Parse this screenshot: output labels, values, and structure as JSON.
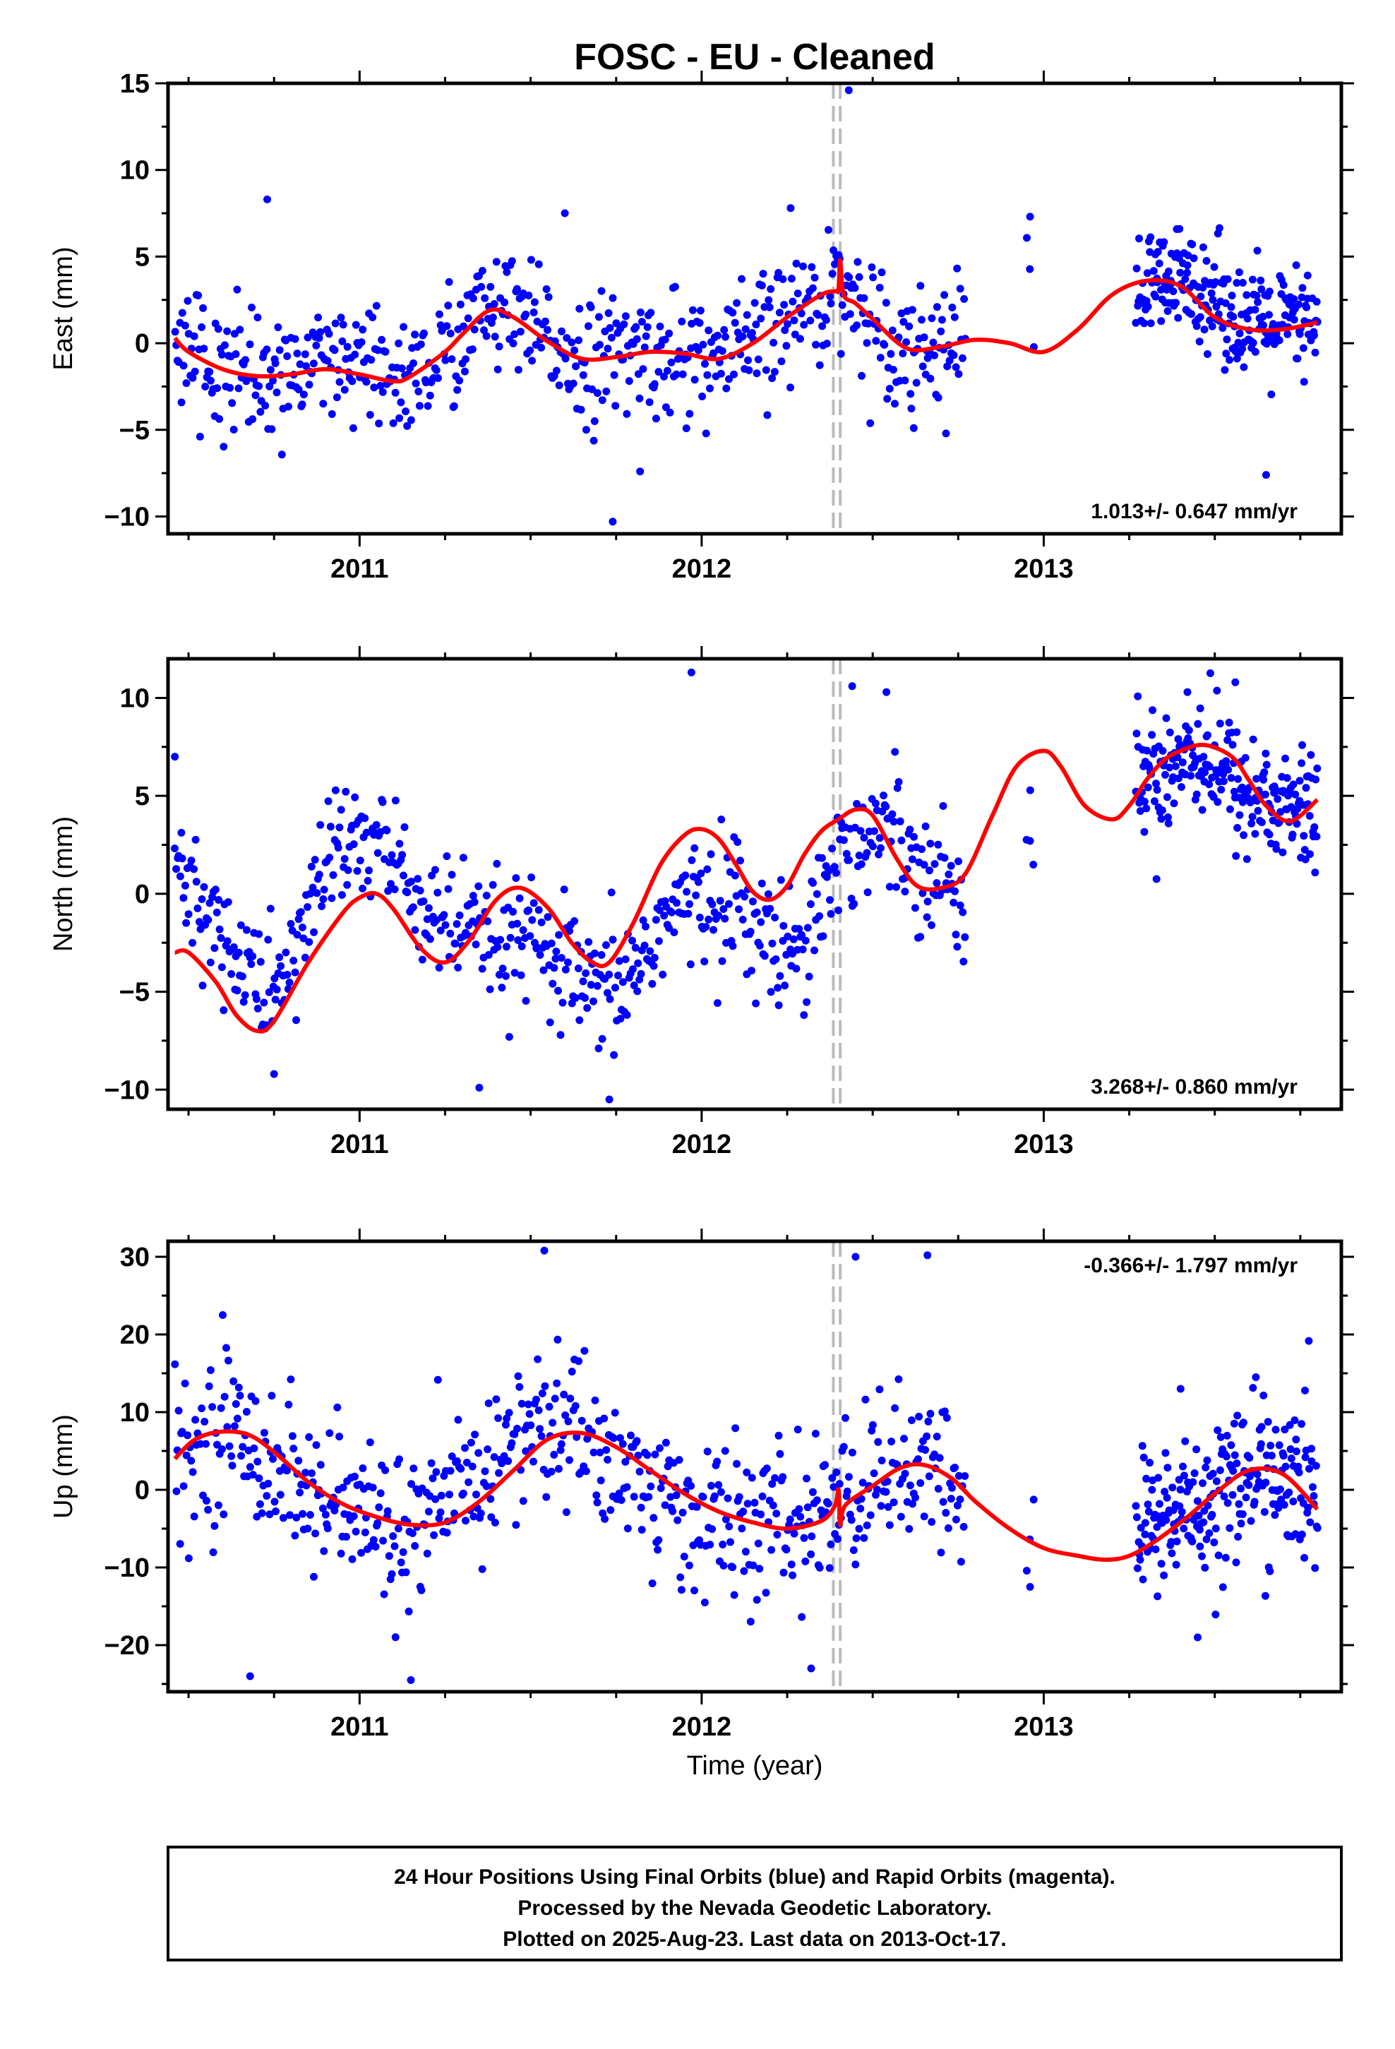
{
  "title": "FOSC  - EU - Cleaned",
  "xlabel": "Time (year)",
  "footer": [
    "24 Hour Positions Using Final Orbits (blue) and Rapid Orbits (magenta).",
    "Processed by the Nevada Geodetic Laboratory.",
    "Plotted on 2025-Aug-23. Last data on 2013-Oct-17."
  ],
  "colors": {
    "points": "#0000ff",
    "model": "#ff0000",
    "offset_line": "#bbbbbb"
  },
  "chart_data": [
    {
      "type": "scatter",
      "component": "East",
      "ylabel": "East (mm)",
      "xlim": [
        2010.44,
        2013.87
      ],
      "ylim": [
        -11,
        15
      ],
      "yticks": [
        -10,
        -5,
        0,
        5,
        10,
        15
      ],
      "xticks": [
        2011,
        2012,
        2013
      ],
      "grid": false,
      "rate": "1.013+/- 0.647 mm/yr",
      "rate_position": "bottom-right",
      "offset_epochs": [
        2012.385,
        2012.405
      ],
      "series": [
        {
          "style": "points",
          "x_range": [
            2010.46,
            2012.77
          ],
          "trend_knots": [
            [
              2010.46,
              0.2
            ],
            [
              2010.6,
              -1.2
            ],
            [
              2010.75,
              -1.9
            ],
            [
              2011.0,
              -1.6
            ],
            [
              2011.1,
              -2.1
            ],
            [
              2011.2,
              -1.5
            ],
            [
              2011.38,
              2.0
            ],
            [
              2011.55,
              0.2
            ],
            [
              2011.65,
              -1.0
            ],
            [
              2011.85,
              -0.5
            ],
            [
              2012.05,
              -1.0
            ],
            [
              2012.15,
              0.0
            ],
            [
              2012.3,
              2.0
            ],
            [
              2012.39,
              3.0
            ],
            [
              2012.405,
              4.6
            ],
            [
              2012.45,
              2.0
            ],
            [
              2012.6,
              -0.2
            ],
            [
              2012.77,
              0.2
            ]
          ],
          "scatter_sd": 1.8,
          "n": 620,
          "outliers": [
            [
              2010.73,
              8.3
            ],
            [
              2011.6,
              7.5
            ],
            [
              2011.74,
              -10.3
            ],
            [
              2011.82,
              -7.4
            ],
            [
              2012.26,
              7.8
            ],
            [
              2012.43,
              14.6
            ],
            [
              2012.62,
              -4.9
            ]
          ]
        },
        {
          "style": "points",
          "x_range": [
            2012.95,
            2012.97
          ],
          "trend_knots": [
            [
              2012.95,
              4.3
            ],
            [
              2012.97,
              2.0
            ]
          ],
          "scatter_sd": 2.0,
          "n": 3,
          "outliers": [
            [
              2012.96,
              7.3
            ]
          ]
        },
        {
          "style": "points",
          "x_range": [
            2013.27,
            2013.8
          ],
          "trend_knots": [
            [
              2013.27,
              3.0
            ],
            [
              2013.45,
              3.6
            ],
            [
              2013.6,
              1.0
            ],
            [
              2013.8,
              1.0
            ]
          ],
          "scatter_sd": 1.6,
          "n": 230,
          "outliers": [
            [
              2013.65,
              -7.6
            ]
          ]
        },
        {
          "style": "model",
          "name": "",
          "x": [
            2010.46,
            2010.5,
            2010.6,
            2010.7,
            2010.8,
            2010.9,
            2011.0,
            2011.1,
            2011.15,
            2011.25,
            2011.3,
            2011.38,
            2011.45,
            2011.55,
            2011.65,
            2011.75,
            2011.85,
            2011.95,
            2012.05,
            2012.15,
            2012.25,
            2012.35,
            2012.39,
            2012.4,
            2012.405,
            2012.415,
            2012.45,
            2012.5,
            2012.6,
            2012.7,
            2012.8,
            2012.9,
            2013.0,
            2013.1,
            2013.2,
            2013.3,
            2013.4,
            2013.5,
            2013.6,
            2013.7,
            2013.8
          ],
          "y": [
            0.3,
            -0.5,
            -1.5,
            -1.9,
            -1.8,
            -1.5,
            -1.8,
            -2.2,
            -1.9,
            -0.5,
            0.5,
            1.9,
            1.5,
            0.1,
            -0.9,
            -0.8,
            -0.5,
            -0.6,
            -0.9,
            0.0,
            1.5,
            2.8,
            3.0,
            3.1,
            4.8,
            2.8,
            2.3,
            1.4,
            -0.3,
            -0.2,
            0.2,
            0.0,
            -0.5,
            0.8,
            2.8,
            3.6,
            3.3,
            1.5,
            0.8,
            0.8,
            1.2
          ]
        }
      ]
    },
    {
      "type": "scatter",
      "component": "North",
      "ylabel": "North (mm)",
      "xlim": [
        2010.44,
        2013.87
      ],
      "ylim": [
        -11,
        12
      ],
      "yticks": [
        -10,
        -5,
        0,
        5,
        10
      ],
      "xticks": [
        2011,
        2012,
        2013
      ],
      "grid": false,
      "rate": "3.268+/- 0.860 mm/yr",
      "rate_position": "bottom-right",
      "offset_epochs": [
        2012.385,
        2012.405
      ],
      "series": [
        {
          "style": "points",
          "x_range": [
            2010.46,
            2012.77
          ],
          "trend_knots": [
            [
              2010.46,
              1.0
            ],
            [
              2010.55,
              -1.0
            ],
            [
              2010.72,
              -5.0
            ],
            [
              2010.8,
              -4.0
            ],
            [
              2010.9,
              2.0
            ],
            [
              2011.05,
              2.8
            ],
            [
              2011.2,
              -1.0
            ],
            [
              2011.35,
              -2.5
            ],
            [
              2011.5,
              -2.5
            ],
            [
              2011.7,
              -5.5
            ],
            [
              2011.8,
              -4.0
            ],
            [
              2011.9,
              -1.0
            ],
            [
              2012.0,
              -0.5
            ],
            [
              2012.1,
              0.0
            ],
            [
              2012.2,
              -3.0
            ],
            [
              2012.3,
              -2.0
            ],
            [
              2012.4,
              2.0
            ],
            [
              2012.55,
              3.5
            ],
            [
              2012.77,
              -0.5
            ]
          ],
          "scatter_sd": 1.6,
          "n": 620,
          "outliers": [
            [
              2010.46,
              7.0
            ],
            [
              2010.75,
              -9.2
            ],
            [
              2011.35,
              -9.9
            ],
            [
              2011.73,
              -10.5
            ],
            [
              2011.97,
              11.3
            ],
            [
              2012.44,
              10.6
            ],
            [
              2012.54,
              10.3
            ]
          ]
        },
        {
          "style": "points",
          "x_range": [
            2012.95,
            2012.97
          ],
          "trend_knots": [
            [
              2012.95,
              5.0
            ],
            [
              2012.97,
              4.0
            ]
          ],
          "scatter_sd": 1.5,
          "n": 3,
          "outliers": [
            [
              2012.96,
              2.7
            ]
          ]
        },
        {
          "style": "points",
          "x_range": [
            2013.27,
            2013.8
          ],
          "trend_knots": [
            [
              2013.27,
              5.5
            ],
            [
              2013.45,
              7.5
            ],
            [
              2013.6,
              5.0
            ],
            [
              2013.8,
              4.0
            ]
          ],
          "scatter_sd": 1.6,
          "n": 230,
          "outliers": [
            [
              2013.42,
              10.3
            ],
            [
              2013.56,
              10.8
            ]
          ]
        },
        {
          "style": "model",
          "name": "",
          "x": [
            2010.46,
            2010.5,
            2010.58,
            2010.64,
            2010.7,
            2010.75,
            2010.85,
            2010.95,
            2011.0,
            2011.05,
            2011.1,
            2011.18,
            2011.25,
            2011.32,
            2011.4,
            2011.47,
            2011.55,
            2011.62,
            2011.68,
            2011.73,
            2011.8,
            2011.88,
            2011.95,
            2012.0,
            2012.05,
            2012.1,
            2012.15,
            2012.2,
            2012.25,
            2012.3,
            2012.35,
            2012.4,
            2012.45,
            2012.5,
            2012.57,
            2012.63,
            2012.7,
            2012.77,
            2012.85,
            2012.92,
            2013.0,
            2013.05,
            2013.12,
            2013.2,
            2013.25,
            2013.3,
            2013.35,
            2013.4,
            2013.47,
            2013.55,
            2013.6,
            2013.65,
            2013.72,
            2013.8
          ],
          "y": [
            -3.0,
            -3.0,
            -4.5,
            -6.2,
            -7.0,
            -6.5,
            -3.5,
            -1.0,
            -0.2,
            0.0,
            -0.8,
            -2.8,
            -3.5,
            -2.4,
            -0.3,
            0.3,
            -0.7,
            -2.5,
            -3.5,
            -3.5,
            -1.5,
            1.5,
            3.0,
            3.3,
            2.8,
            1.5,
            0.1,
            -0.3,
            0.4,
            2.0,
            3.2,
            3.8,
            4.3,
            4.0,
            1.8,
            0.4,
            0.3,
            1.0,
            4.0,
            6.5,
            7.3,
            6.5,
            4.5,
            3.8,
            4.5,
            5.8,
            6.8,
            7.3,
            7.6,
            7.0,
            5.8,
            4.5,
            3.7,
            4.8
          ]
        }
      ]
    },
    {
      "type": "scatter",
      "component": "Up",
      "ylabel": "Up (mm)",
      "xlim": [
        2010.44,
        2013.87
      ],
      "ylim": [
        -26,
        32
      ],
      "yticks": [
        -20,
        -10,
        0,
        10,
        20,
        30
      ],
      "xticks": [
        2011,
        2012,
        2013
      ],
      "grid": false,
      "rate": "-0.366+/- 1.797 mm/yr",
      "rate_position": "top-right",
      "offset_epochs": [
        2012.385,
        2012.405
      ],
      "series": [
        {
          "style": "points",
          "x_range": [
            2010.46,
            2012.77
          ],
          "trend_knots": [
            [
              2010.46,
              3.0
            ],
            [
              2010.6,
              8.0
            ],
            [
              2010.75,
              4.0
            ],
            [
              2010.9,
              -2.0
            ],
            [
              2011.1,
              -5.0
            ],
            [
              2011.2,
              -5.0
            ],
            [
              2011.35,
              2.0
            ],
            [
              2011.5,
              8.0
            ],
            [
              2011.65,
              8.0
            ],
            [
              2011.8,
              1.0
            ],
            [
              2011.95,
              -3.0
            ],
            [
              2012.15,
              -5.0
            ],
            [
              2012.3,
              -4.0
            ],
            [
              2012.4,
              -2.0
            ],
            [
              2012.55,
              3.0
            ],
            [
              2012.77,
              0.0
            ]
          ],
          "scatter_sd": 5.0,
          "n": 620,
          "outliers": [
            [
              2010.6,
              22.5
            ],
            [
              2010.68,
              -24.0
            ],
            [
              2011.15,
              -24.5
            ],
            [
              2011.54,
              30.8
            ],
            [
              2012.32,
              -23.0
            ],
            [
              2012.45,
              30.0
            ],
            [
              2012.66,
              30.2
            ]
          ]
        },
        {
          "style": "points",
          "x_range": [
            2012.95,
            2012.97
          ],
          "trend_knots": [
            [
              2012.95,
              -7.0
            ],
            [
              2012.97,
              -8.0
            ]
          ],
          "scatter_sd": 3.0,
          "n": 3,
          "outliers": [
            [
              2012.96,
              -12.5
            ]
          ]
        },
        {
          "style": "points",
          "x_range": [
            2013.27,
            2013.8
          ],
          "trend_knots": [
            [
              2013.27,
              -5.0
            ],
            [
              2013.45,
              -2.0
            ],
            [
              2013.6,
              2.0
            ],
            [
              2013.8,
              0.0
            ]
          ],
          "scatter_sd": 5.0,
          "n": 230,
          "outliers": [
            [
              2013.4,
              13.0
            ],
            [
              2013.45,
              -19.0
            ],
            [
              2013.62,
              14.5
            ]
          ]
        },
        {
          "style": "model",
          "name": "",
          "x": [
            2010.46,
            2010.52,
            2010.6,
            2010.68,
            2010.76,
            2010.85,
            2010.95,
            2011.05,
            2011.15,
            2011.25,
            2011.35,
            2011.45,
            2011.55,
            2011.65,
            2011.75,
            2011.85,
            2011.95,
            2012.05,
            2012.15,
            2012.25,
            2012.35,
            2012.39,
            2012.4,
            2012.405,
            2012.42,
            2012.5,
            2012.58,
            2012.65,
            2012.73,
            2012.8,
            2012.9,
            2013.0,
            2013.1,
            2013.18,
            2013.25,
            2013.33,
            2013.42,
            2013.5,
            2013.6,
            2013.7,
            2013.8
          ],
          "y": [
            4.0,
            6.5,
            7.5,
            7.0,
            4.5,
            1.0,
            -1.8,
            -3.5,
            -4.5,
            -4.2,
            -1.5,
            2.5,
            6.5,
            7.3,
            5.5,
            2.5,
            -0.5,
            -2.8,
            -4.2,
            -5.0,
            -4.0,
            -2.0,
            0.0,
            -4.5,
            -2.0,
            0.5,
            2.8,
            3.2,
            1.5,
            -1.5,
            -5.0,
            -7.5,
            -8.5,
            -9.0,
            -8.5,
            -6.5,
            -3.5,
            -0.5,
            2.5,
            2.0,
            -2.5
          ]
        }
      ]
    }
  ]
}
